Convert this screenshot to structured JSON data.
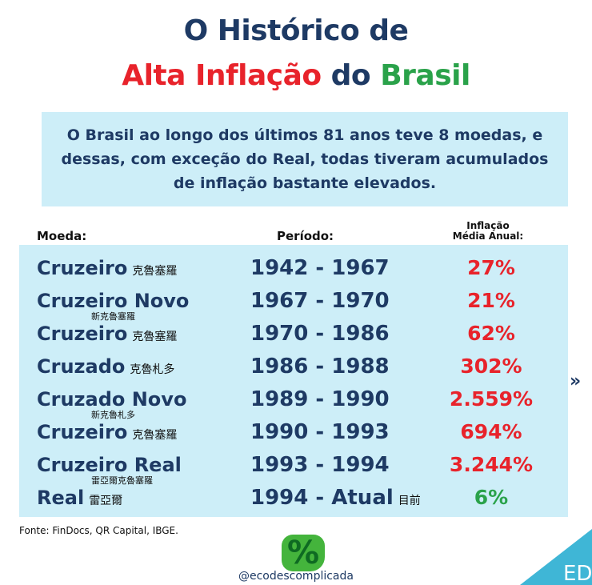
{
  "title": {
    "line1": "O Histórico de",
    "part_red": "Alta Inflação",
    "part_navy": " do ",
    "part_green": "Brasil"
  },
  "intro": "O Brasil ao longo dos últimos 81 anos teve 8 moedas, e dessas, com exceção do Real, todas tiveram acumulados de inflação bastante elevados.",
  "headers": {
    "coin": "Moeda:",
    "period": "Período:",
    "inflation_1": "Inflação",
    "inflation_2": "Média Anual:"
  },
  "rows": [
    {
      "coin": "Cruzeiro",
      "sub": "克魯塞羅",
      "under": "",
      "period": "1942 - 1967",
      "psub": "",
      "rate": "27%",
      "color": "#e8232b"
    },
    {
      "coin": "Cruzeiro Novo",
      "sub": "",
      "under": "新克魯塞羅",
      "period": "1967 - 1970",
      "psub": "",
      "rate": "21%",
      "color": "#e8232b"
    },
    {
      "coin": "Cruzeiro",
      "sub": "克魯塞羅",
      "under": "",
      "period": "1970 - 1986",
      "psub": "",
      "rate": "62%",
      "color": "#e8232b"
    },
    {
      "coin": "Cruzado",
      "sub": "克魯札多",
      "under": "",
      "period": "1986 - 1988",
      "psub": "",
      "rate": "302%",
      "color": "#e8232b"
    },
    {
      "coin": "Cruzado Novo",
      "sub": "",
      "under": "新克魯札多",
      "period": "1989 - 1990",
      "psub": "",
      "rate": "2.559%",
      "color": "#e8232b"
    },
    {
      "coin": "Cruzeiro",
      "sub": "克魯塞羅",
      "under": "",
      "period": "1990 - 1993",
      "psub": "",
      "rate": "694%",
      "color": "#e8232b"
    },
    {
      "coin": "Cruzeiro Real",
      "sub": "",
      "under": "雷亞爾克魯塞羅",
      "period": "1993 - 1994",
      "psub": "",
      "rate": "3.244%",
      "color": "#e8232b"
    },
    {
      "coin": "Real",
      "sub": "雷亞爾",
      "under": "",
      "period": "1994 - Atual",
      "psub": "目前",
      "rate": "6%",
      "color": "#2aa24a"
    }
  ],
  "source": "Fonte: FinDocs, QR Capital, IBGE.",
  "logo_symbol": "%",
  "handle": "@ecodescomplicada",
  "corner_logo": "ED",
  "next_arrow": "»"
}
